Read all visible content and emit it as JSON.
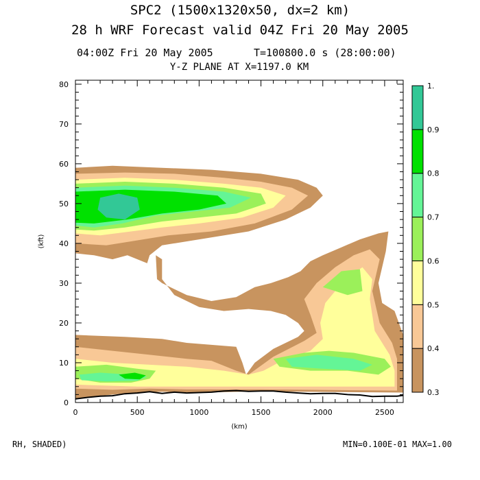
{
  "header": {
    "title_line1": "SPC2 (1500x1320x50, dx=2 km)",
    "title_line2": "28 h WRF Forecast valid 04Z Fri 20 May 2005",
    "valid_time": "04:00Z Fri 20 May 2005",
    "time_step": "T=100800.0 s (28:00:00)",
    "plane": "Y-Z PLANE AT X=1197.0 KM"
  },
  "footer": {
    "field": "RH, SHADED)",
    "minmax": "MIN=0.100E-01 MAX=1.00"
  },
  "chart_data": {
    "type": "contour",
    "xlabel": "(km)",
    "ylabel": "(kft)",
    "xlim": [
      0,
      2650
    ],
    "ylim": [
      0,
      81
    ],
    "xticks": [
      0,
      500,
      1000,
      1500,
      2000,
      2500
    ],
    "xtick_labels": [
      "0",
      "500",
      "1000",
      "1500",
      "2000",
      "2500"
    ],
    "yticks": [
      0,
      10,
      20,
      30,
      40,
      50,
      60,
      70,
      80
    ],
    "ytick_labels": [
      "0",
      "10",
      "20",
      "30",
      "40",
      "50",
      "60",
      "70",
      "80"
    ],
    "colorbar": {
      "levels": [
        0.3,
        0.4,
        0.5,
        0.6,
        0.7,
        0.8,
        0.9,
        1.0
      ],
      "labels": [
        "0.3",
        "0.4",
        "0.5",
        "0.6",
        "0.7",
        "0.8",
        "0.9",
        "1."
      ],
      "colors": [
        "#c8945f",
        "#f8c896",
        "#ffff9b",
        "#9bf05a",
        "#64f596",
        "#00e100",
        "#32c896"
      ]
    },
    "regions": [
      {
        "name": "anvil-0.3",
        "level": 0.3,
        "points": [
          [
            0,
            59
          ],
          [
            300,
            59.5
          ],
          [
            700,
            59
          ],
          [
            1100,
            58.5
          ],
          [
            1500,
            57.5
          ],
          [
            1800,
            56
          ],
          [
            1950,
            54
          ],
          [
            2000,
            52
          ],
          [
            1900,
            49
          ],
          [
            1700,
            46
          ],
          [
            1400,
            43
          ],
          [
            1000,
            41
          ],
          [
            700,
            39.5
          ],
          [
            600,
            37
          ],
          [
            580,
            35
          ],
          [
            420,
            37
          ],
          [
            300,
            36
          ],
          [
            150,
            37
          ],
          [
            0,
            37.5
          ]
        ]
      },
      {
        "name": "anvil-0.4",
        "level": 0.4,
        "points": [
          [
            0,
            57.5
          ],
          [
            400,
            57.8
          ],
          [
            800,
            57.5
          ],
          [
            1200,
            56.5
          ],
          [
            1500,
            55.5
          ],
          [
            1750,
            54
          ],
          [
            1880,
            52
          ],
          [
            1750,
            48.5
          ],
          [
            1450,
            45
          ],
          [
            1100,
            43
          ],
          [
            750,
            42
          ],
          [
            450,
            40.5
          ],
          [
            250,
            39.5
          ],
          [
            0,
            40
          ]
        ]
      },
      {
        "name": "anvil-0.5",
        "level": 0.5,
        "points": [
          [
            0,
            56
          ],
          [
            400,
            56.5
          ],
          [
            800,
            56
          ],
          [
            1200,
            55
          ],
          [
            1500,
            54
          ],
          [
            1700,
            52
          ],
          [
            1600,
            49
          ],
          [
            1350,
            46.5
          ],
          [
            1000,
            45
          ],
          [
            700,
            44
          ],
          [
            450,
            43
          ],
          [
            200,
            42
          ],
          [
            0,
            42.5
          ]
        ]
      },
      {
        "name": "anvil-0.6",
        "level": 0.6,
        "points": [
          [
            0,
            55
          ],
          [
            400,
            55.5
          ],
          [
            800,
            55
          ],
          [
            1200,
            54
          ],
          [
            1500,
            52.5
          ],
          [
            1540,
            50
          ],
          [
            1300,
            47.5
          ],
          [
            1000,
            46.5
          ],
          [
            700,
            45.5
          ],
          [
            400,
            44
          ],
          [
            150,
            43.2
          ],
          [
            0,
            43.5
          ]
        ]
      },
      {
        "name": "anvil-0.7",
        "level": 0.7,
        "points": [
          [
            0,
            54
          ],
          [
            400,
            54.5
          ],
          [
            800,
            54
          ],
          [
            1200,
            53
          ],
          [
            1420,
            51.5
          ],
          [
            1250,
            49
          ],
          [
            950,
            48
          ],
          [
            650,
            47
          ],
          [
            380,
            45
          ],
          [
            150,
            44
          ],
          [
            0,
            44.5
          ]
        ]
      },
      {
        "name": "anvil-0.8",
        "level": 0.8,
        "points": [
          [
            0,
            53
          ],
          [
            400,
            53.5
          ],
          [
            800,
            53
          ],
          [
            1150,
            52
          ],
          [
            1220,
            50
          ],
          [
            1000,
            48.5
          ],
          [
            700,
            47.5
          ],
          [
            420,
            46
          ],
          [
            150,
            45
          ],
          [
            0,
            45.2
          ]
        ]
      },
      {
        "name": "anvil-0.9",
        "level": 0.9,
        "points": [
          [
            200,
            51.5
          ],
          [
            350,
            52.5
          ],
          [
            500,
            51.5
          ],
          [
            520,
            48.5
          ],
          [
            400,
            46
          ],
          [
            250,
            46.5
          ],
          [
            180,
            48.5
          ]
        ]
      },
      {
        "name": "tower-0.3",
        "level": 0.3,
        "points": [
          [
            650,
            37
          ],
          [
            660,
            31
          ],
          [
            700,
            30
          ],
          [
            900,
            27
          ],
          [
            1100,
            25.5
          ],
          [
            1300,
            26.5
          ],
          [
            1450,
            29
          ],
          [
            1580,
            30
          ],
          [
            1720,
            31.5
          ],
          [
            1820,
            33
          ],
          [
            1900,
            35.5
          ],
          [
            2000,
            37
          ],
          [
            2150,
            39
          ],
          [
            2300,
            41
          ],
          [
            2450,
            42.5
          ],
          [
            2530,
            43
          ],
          [
            2510,
            38
          ],
          [
            2450,
            30
          ],
          [
            2480,
            25
          ],
          [
            2580,
            23
          ],
          [
            2650,
            17
          ],
          [
            2650,
            2.5
          ],
          [
            1500,
            2.8
          ],
          [
            1000,
            2.5
          ],
          [
            700,
            2.7
          ],
          [
            400,
            2.3
          ],
          [
            200,
            1.7
          ],
          [
            0,
            0.9
          ],
          [
            0,
            17
          ],
          [
            400,
            16.5
          ],
          [
            700,
            16
          ],
          [
            900,
            15
          ],
          [
            1100,
            14.5
          ],
          [
            1300,
            14
          ],
          [
            1350,
            10
          ],
          [
            1380,
            7
          ],
          [
            1450,
            10
          ],
          [
            1600,
            13.5
          ],
          [
            1800,
            16.5
          ],
          [
            1850,
            18
          ],
          [
            1800,
            20
          ],
          [
            1700,
            22
          ],
          [
            1580,
            23
          ],
          [
            1400,
            23.5
          ],
          [
            1200,
            23
          ],
          [
            1000,
            24
          ],
          [
            800,
            27
          ],
          [
            700,
            31
          ],
          [
            700,
            36
          ]
        ]
      },
      {
        "name": "tower-0.4",
        "level": 0.4,
        "points": [
          [
            1400,
            7
          ],
          [
            1600,
            11.5
          ],
          [
            1850,
            15.5
          ],
          [
            1950,
            17.5
          ],
          [
            1900,
            22
          ],
          [
            1850,
            26
          ],
          [
            1950,
            30
          ],
          [
            2100,
            34
          ],
          [
            2250,
            37
          ],
          [
            2380,
            38.5
          ],
          [
            2460,
            36
          ],
          [
            2400,
            28
          ],
          [
            2460,
            20
          ],
          [
            2560,
            15
          ],
          [
            2600,
            11
          ],
          [
            2600,
            3
          ],
          [
            1500,
            3.3
          ],
          [
            1200,
            3.3
          ],
          [
            900,
            3.3
          ],
          [
            600,
            3.5
          ],
          [
            300,
            3.2
          ],
          [
            0,
            3.5
          ],
          [
            0,
            14
          ],
          [
            300,
            13
          ],
          [
            600,
            12
          ],
          [
            900,
            11
          ],
          [
            1100,
            10.5
          ],
          [
            1300,
            8
          ]
        ]
      },
      {
        "name": "tower-0.5",
        "level": 0.5,
        "points": [
          [
            1520,
            8
          ],
          [
            1700,
            11
          ],
          [
            1900,
            13
          ],
          [
            2000,
            16
          ],
          [
            1980,
            20
          ],
          [
            2020,
            25
          ],
          [
            2180,
            31
          ],
          [
            2320,
            34
          ],
          [
            2400,
            31
          ],
          [
            2380,
            26
          ],
          [
            2420,
            18
          ],
          [
            2540,
            12
          ],
          [
            2580,
            8
          ],
          [
            2580,
            4
          ],
          [
            1500,
            4
          ],
          [
            1000,
            4
          ],
          [
            500,
            4
          ],
          [
            0,
            4.5
          ],
          [
            0,
            11
          ],
          [
            300,
            10
          ],
          [
            600,
            9.5
          ],
          [
            900,
            9
          ],
          [
            1200,
            8
          ],
          [
            1400,
            7
          ]
        ]
      },
      {
        "name": "tower-0.6-a",
        "level": 0.6,
        "points": [
          [
            1600,
            11
          ],
          [
            1850,
            12.5
          ],
          [
            2050,
            13
          ],
          [
            2250,
            12.5
          ],
          [
            2500,
            11
          ],
          [
            2550,
            9
          ],
          [
            2450,
            7
          ],
          [
            2200,
            8
          ],
          [
            1900,
            8
          ],
          [
            1650,
            9
          ]
        ]
      },
      {
        "name": "tower-0.6-b",
        "level": 0.6,
        "points": [
          [
            0,
            9
          ],
          [
            250,
            9.5
          ],
          [
            500,
            8.5
          ],
          [
            650,
            8
          ],
          [
            600,
            6
          ],
          [
            450,
            5
          ],
          [
            200,
            5
          ],
          [
            0,
            6
          ]
        ]
      },
      {
        "name": "tower-0.6-c",
        "level": 0.6,
        "points": [
          [
            2000,
            29
          ],
          [
            2150,
            33
          ],
          [
            2300,
            33.5
          ],
          [
            2320,
            28
          ],
          [
            2200,
            27
          ]
        ]
      },
      {
        "name": "tower-0.7-a",
        "level": 0.7,
        "points": [
          [
            1700,
            11
          ],
          [
            1950,
            12
          ],
          [
            2250,
            11
          ],
          [
            2400,
            9.5
          ],
          [
            2300,
            8
          ],
          [
            2000,
            8.5
          ],
          [
            1750,
            9
          ]
        ]
      },
      {
        "name": "tower-0.7-b",
        "level": 0.7,
        "points": [
          [
            30,
            7
          ],
          [
            200,
            7.5
          ],
          [
            450,
            7
          ],
          [
            580,
            6.5
          ],
          [
            500,
            5.5
          ],
          [
            250,
            5.3
          ],
          [
            50,
            5.6
          ]
        ]
      },
      {
        "name": "tower-0.8-b",
        "level": 0.8,
        "points": [
          [
            350,
            7
          ],
          [
            480,
            7.5
          ],
          [
            570,
            6.8
          ],
          [
            520,
            5.8
          ],
          [
            400,
            6
          ]
        ]
      }
    ],
    "terrain": [
      [
        0,
        0.9
      ],
      [
        100,
        1.3
      ],
      [
        200,
        1.6
      ],
      [
        300,
        1.7
      ],
      [
        400,
        2.2
      ],
      [
        500,
        2.4
      ],
      [
        600,
        2.7
      ],
      [
        700,
        2.3
      ],
      [
        800,
        2.6
      ],
      [
        900,
        2.4
      ],
      [
        1000,
        2.5
      ],
      [
        1100,
        2.6
      ],
      [
        1200,
        2.9
      ],
      [
        1300,
        3.0
      ],
      [
        1400,
        2.8
      ],
      [
        1500,
        2.9
      ],
      [
        1600,
        2.9
      ],
      [
        1700,
        2.6
      ],
      [
        1800,
        2.4
      ],
      [
        1900,
        2.2
      ],
      [
        2000,
        2.3
      ],
      [
        2100,
        2.3
      ],
      [
        2200,
        2.0
      ],
      [
        2300,
        1.9
      ],
      [
        2400,
        1.5
      ],
      [
        2500,
        1.6
      ],
      [
        2600,
        1.6
      ],
      [
        2650,
        1.8
      ]
    ]
  }
}
